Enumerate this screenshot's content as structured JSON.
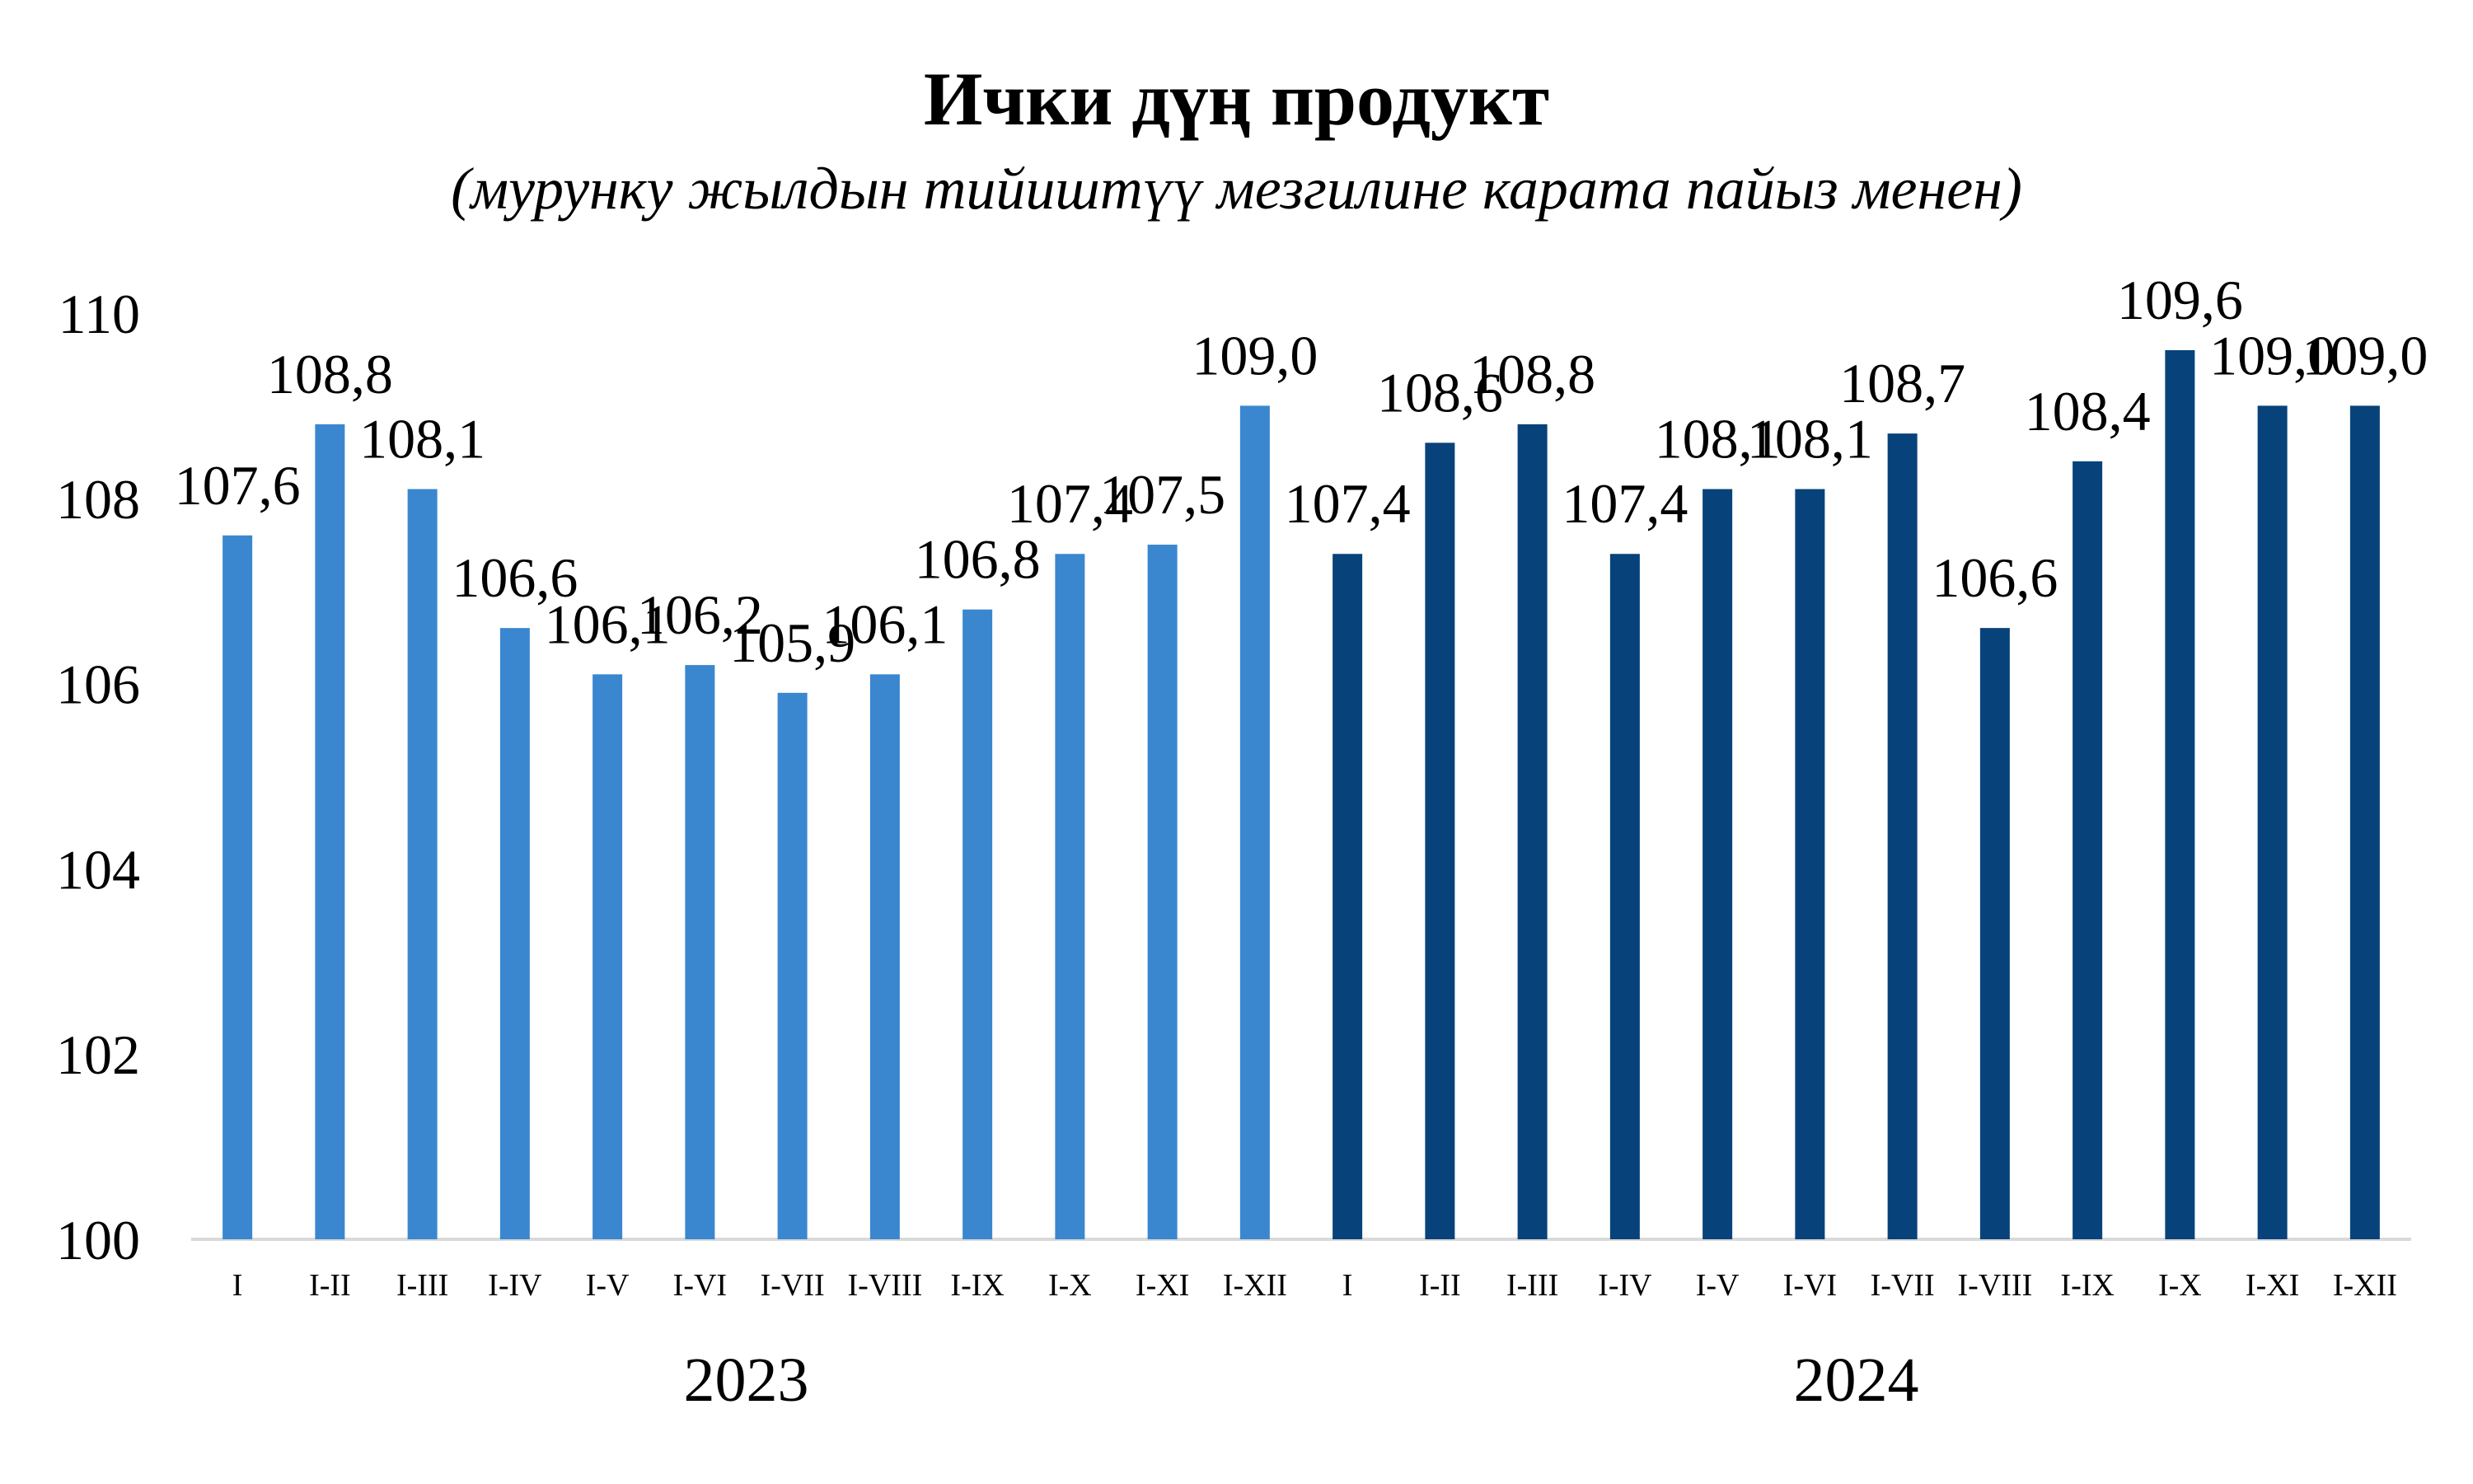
{
  "chart_data": {
    "type": "bar",
    "title": "Ички дүң продукт",
    "subtitle": "(мурунку жылдын тийиштүү мезгилине карата пайыз менен)",
    "xlabel": "",
    "ylabel": "",
    "ylim": [
      100,
      110
    ],
    "yticks": [
      "100",
      "102",
      "104",
      "106",
      "108",
      "110"
    ],
    "grid": false,
    "legend": "none",
    "groups": [
      {
        "label": "2023",
        "color": "#3a87d0",
        "categories": [
          "I",
          "I-II",
          "I-III",
          "I-IV",
          "I-V",
          "I-VI",
          "I-VII",
          "I-VIII",
          "I-IX",
          "I-X",
          "I-XI",
          "I-XII"
        ],
        "values": [
          107.6,
          108.8,
          108.1,
          106.6,
          106.1,
          106.2,
          105.9,
          106.1,
          106.8,
          107.4,
          107.5,
          109.0
        ],
        "value_labels": [
          "107,6",
          "108,8",
          "108,1",
          "106,6",
          "106,1",
          "106,2",
          "105,9",
          "106,1",
          "106,8",
          "107,4",
          "107,5",
          "109,0"
        ]
      },
      {
        "label": "2024",
        "color": "#08427a",
        "categories": [
          "I",
          "I-II",
          "I-III",
          "I-IV",
          "I-V",
          "I-VI",
          "I-VII",
          "I-VIII",
          "I-IX",
          "I-X",
          "I-XI",
          "I-XII"
        ],
        "values": [
          107.4,
          108.6,
          108.8,
          107.4,
          108.1,
          108.1,
          108.7,
          106.6,
          108.4,
          109.6,
          109.0,
          109.0
        ],
        "value_labels": [
          "107,4",
          "108,6",
          "108,8",
          "107,4",
          "108,1",
          "108,1",
          "108,7",
          "106,6",
          "108,4",
          "109,6",
          "109,0",
          "109,0"
        ]
      }
    ]
  }
}
